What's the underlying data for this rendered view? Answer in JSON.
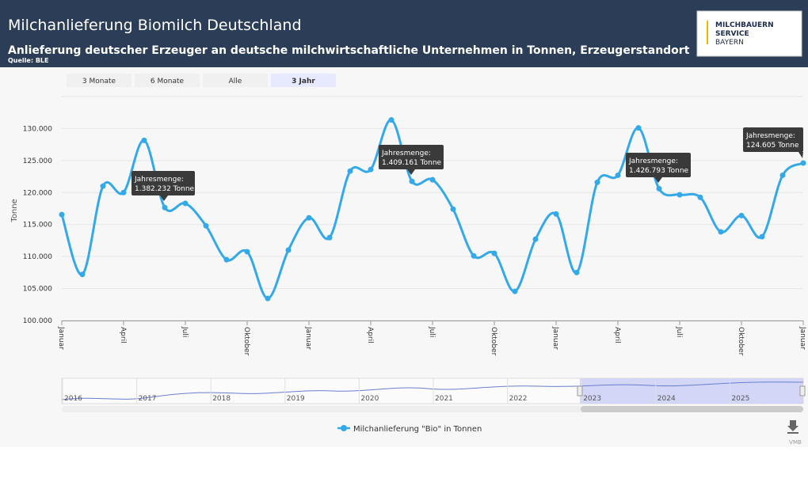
{
  "header": {
    "title": "Milchanlieferung Biomilch Deutschland",
    "subtitle": "Anlieferung deutscher Erzeuger an deutsche milchwirtschaftliche Unternehmen in Tonnen, Erzeugerstandort",
    "source": "Quelle: BLE",
    "logo": [
      "MILCHBAUERN",
      "SERVICE",
      "BAYERN"
    ]
  },
  "range_buttons": {
    "labels": [
      "3 Monate",
      "6 Monate",
      "Alle",
      "3 Jahr"
    ],
    "selected": 3
  },
  "chart_data": {
    "type": "line",
    "y_label": "Tonne",
    "categories": [
      "Januar",
      null,
      null,
      "April",
      null,
      null,
      "Juli",
      null,
      null,
      "Oktober",
      null,
      null,
      "Januar",
      null,
      null,
      "April",
      null,
      null,
      "Juli",
      null,
      null,
      "Oktober",
      null,
      null,
      "Januar",
      null,
      null,
      "April",
      null,
      null,
      "Juli",
      null,
      null,
      "Oktober",
      null,
      null,
      "Januar"
    ],
    "series": [
      {
        "name": "Milchanlieferung \"Bio\" in Tonnen",
        "color": "#34a9ea",
        "values": [
          116550,
          107200,
          121000,
          120000,
          128150,
          117650,
          118300,
          114800,
          109500,
          110750,
          103450,
          111000,
          116050,
          112950,
          123350,
          123600,
          131350,
          121750,
          122000,
          117400,
          110100,
          110500,
          104550,
          112700,
          116650,
          107500,
          121600,
          122700,
          130100,
          120600,
          119650,
          119250,
          113850,
          116400,
          113100,
          122700,
          124605
        ]
      }
    ],
    "ylim": [
      100000,
      135000
    ],
    "yticks": [
      {
        "value": 100000,
        "label": "100.000"
      },
      {
        "value": 105000,
        "label": "105.000"
      },
      {
        "value": 110000,
        "label": "110.000"
      },
      {
        "value": 115000,
        "label": "115.000"
      },
      {
        "value": 120000,
        "label": "120.000"
      },
      {
        "value": 125000,
        "label": "125.000"
      },
      {
        "value": 130000,
        "label": "130.000"
      }
    ],
    "grid": true,
    "annotations": [
      {
        "title": "Jahresmenge:",
        "text": "1.382.232 Tonne"
      },
      {
        "title": "Jahresmenge:",
        "text": "1.409.161 Tonne"
      },
      {
        "title": "Jahresmenge:",
        "text": "1.426.793 Tonne"
      },
      {
        "title": "Jahresmenge:",
        "text": "124.605 Tonne"
      }
    ]
  },
  "navigator": {
    "years": [
      "2016",
      "2017",
      "2018",
      "2019",
      "2020",
      "2021",
      "2022",
      "2023",
      "2024",
      "2025"
    ]
  },
  "footer": {
    "credit": "VMB"
  }
}
